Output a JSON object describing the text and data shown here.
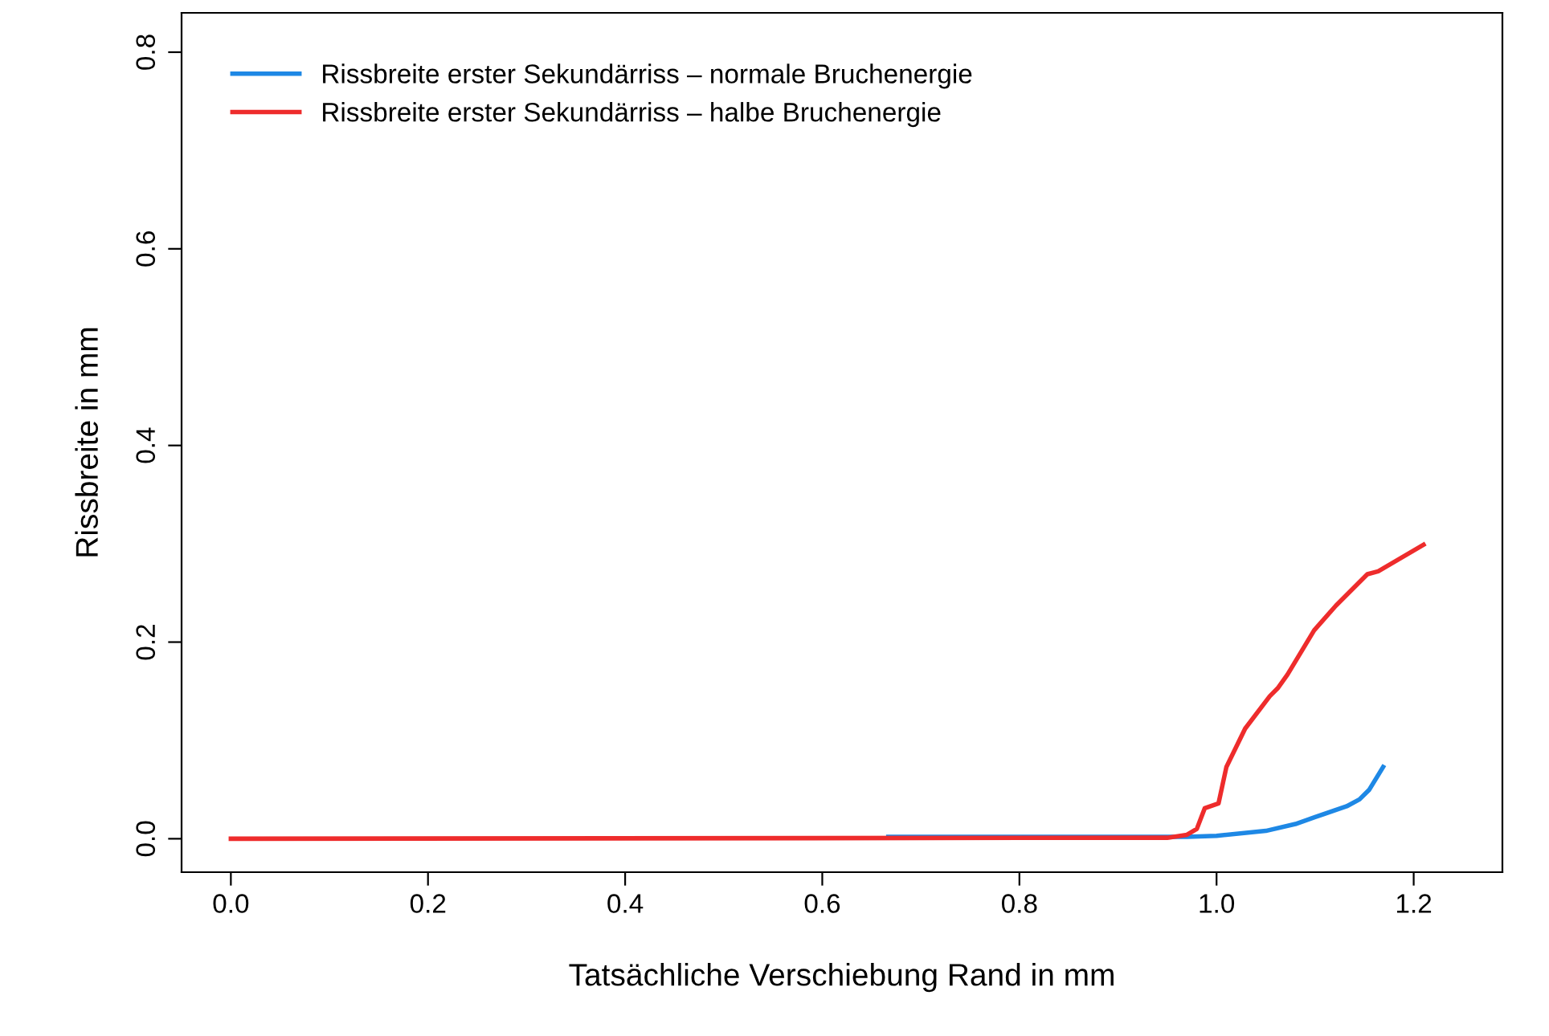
{
  "chart_data": {
    "type": "line",
    "xlabel": "Tatsächliche Verschiebung Rand in mm",
    "ylabel": "Rissbreite in mm",
    "xlim": [
      -0.05,
      1.29
    ],
    "ylim": [
      -0.034,
      0.84
    ],
    "xticks": [
      {
        "value": 0,
        "label": "0.0"
      },
      0.2,
      0.4,
      0.6,
      0.8,
      {
        "value": 1,
        "label": "1.0"
      },
      1.2
    ],
    "yticks": [
      {
        "value": 0,
        "label": "0.0"
      },
      0.2,
      0.4,
      0.6,
      0.8
    ],
    "grid": false,
    "legend": "top left",
    "line_style": "solid",
    "series": [
      {
        "name": "Rissbreite erster Sekundärriss – normale Bruchenergie",
        "color": "#1e88e5",
        "x": [
          0.667,
          0.9,
          0.97,
          1.0,
          1.05,
          1.08,
          1.1,
          1.132,
          1.145,
          1.155,
          1.169
        ],
        "values": [
          0.002,
          0.002,
          0.002,
          0.003,
          0.008,
          0.015,
          0.022,
          0.033,
          0.04,
          0.05,
          0.073
        ]
      },
      {
        "name": "Rissbreite erster Sekundärriss – halbe Bruchenergie",
        "color": "#ee2c2c",
        "x": [
          0,
          0.95,
          0.97,
          0.98,
          0.988,
          1.002,
          1.01,
          1.029,
          1.054,
          1.062,
          1.072,
          1.099,
          1.121,
          1.153,
          1.164,
          1.21
        ],
        "values": [
          0,
          0.001,
          0.004,
          0.01,
          0.031,
          0.036,
          0.073,
          0.112,
          0.145,
          0.153,
          0.167,
          0.212,
          0.237,
          0.269,
          0.272,
          0.299
        ]
      }
    ]
  }
}
